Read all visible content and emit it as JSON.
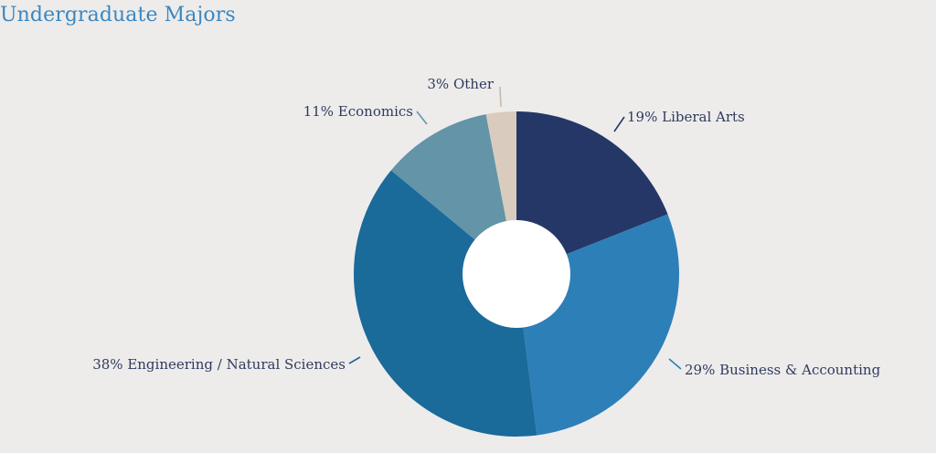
{
  "chart_data": {
    "type": "pie",
    "title": "Undergraduate Majors",
    "donut": true,
    "start_angle_deg": 0,
    "direction": "clockwise",
    "slices": [
      {
        "label": "19% Liberal Arts",
        "value": 19,
        "color": "#253766"
      },
      {
        "label": "29% Business & Accounting",
        "value": 29,
        "color": "#2d7fb8"
      },
      {
        "label": "38% Engineering / Natural Sciences",
        "value": 38,
        "color": "#1a6a9a"
      },
      {
        "label": "11% Economics",
        "value": 11,
        "color": "#6394a8"
      },
      {
        "label": "3% Other",
        "value": 3,
        "color": "#d9cbbd"
      }
    ]
  }
}
